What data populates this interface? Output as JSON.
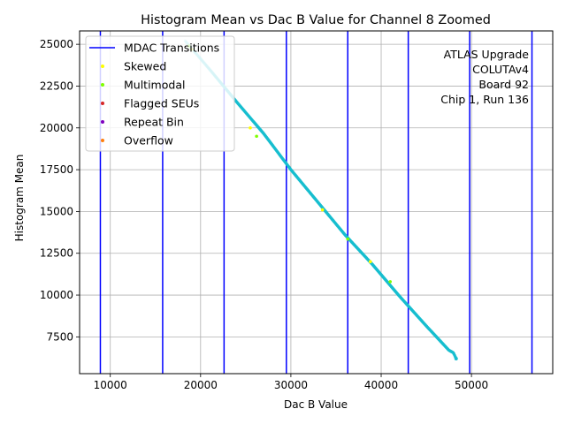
{
  "chart_data": {
    "type": "scatter",
    "title": "Histogram Mean vs Dac B Value for Channel 8 Zoomed",
    "xlabel": "Dac B Value",
    "ylabel": "Histogram Mean",
    "xlim": [
      6600,
      59000
    ],
    "ylim": [
      5300,
      25800
    ],
    "xticks": [
      10000,
      20000,
      30000,
      40000,
      50000
    ],
    "yticks": [
      7500,
      10000,
      12500,
      15000,
      17500,
      20000,
      22500,
      25000
    ],
    "xtick_labels": [
      "10000",
      "20000",
      "30000",
      "40000",
      "50000"
    ],
    "ytick_labels": [
      "7500",
      "10000",
      "12500",
      "15000",
      "17500",
      "20000",
      "22500",
      "25000"
    ],
    "grid": true,
    "legend_position": "top-left",
    "annotation": [
      "ATLAS Upgrade",
      "COLUTAv4",
      "Board 92",
      "Chip 1, Run 136"
    ],
    "mdac_transitions": {
      "name": "MDAC Transitions",
      "color": "#0000ff",
      "x": [
        8900,
        15800,
        22600,
        29500,
        36300,
        43000,
        49800,
        56700
      ]
    },
    "data_series": {
      "color": "#17becf",
      "x_range": [
        18300,
        48300
      ],
      "y_range": [
        25200,
        6200
      ],
      "x": [
        18300,
        21000,
        24000,
        27000,
        30000,
        33000,
        36000,
        39000,
        42000,
        45000,
        47500,
        48000,
        48300
      ],
      "y": [
        25200,
        23500,
        21550,
        19650,
        17500,
        15550,
        13600,
        11850,
        9950,
        8150,
        6700,
        6550,
        6200
      ]
    },
    "highlight_series": [
      {
        "name": "Skewed",
        "color": "#ffff00",
        "x": [
          19000,
          25500,
          33500,
          38800
        ],
        "y": [
          24700,
          20000,
          15100,
          12000
        ]
      },
      {
        "name": "Multimodal",
        "color": "#7fff00",
        "x": [
          18700,
          26200,
          36300,
          41000
        ],
        "y": [
          24900,
          19500,
          13350,
          10800
        ]
      },
      {
        "name": "Flagged SEUs",
        "color": "#d62728",
        "x": [],
        "y": []
      },
      {
        "name": "Repeat Bin",
        "color": "#7f00bf",
        "x": [],
        "y": []
      },
      {
        "name": "Overflow",
        "color": "#ff7f0e",
        "x": [],
        "y": []
      }
    ],
    "legend_entries": [
      "MDAC Transitions",
      "Skewed",
      "Multimodal",
      "Flagged SEUs",
      "Repeat Bin",
      "Overflow"
    ]
  }
}
